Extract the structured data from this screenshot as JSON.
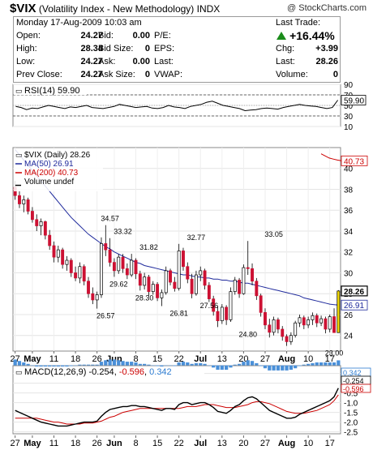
{
  "header": {
    "symbol": "$VIX",
    "name": "(Volatility Index - New Methodology)",
    "exchange": "INDX",
    "credit": "@ StockCharts.com"
  },
  "quote": {
    "date_line": "Monday  17-Aug-2009 10:03 am",
    "open_label": "Open:",
    "open": "24.27",
    "high_label": "High:",
    "high": "28.34",
    "low_label": "Low:",
    "low": "24.27",
    "prev_close_label": "Prev Close:",
    "prev_close": "24.27",
    "bid_label": "Bid:",
    "bid": "0.00",
    "bid_size_label": "Bid Size:",
    "bid_size": "0",
    "ask_label": "Ask:",
    "ask": "0.00",
    "ask_size_label": "Ask Size:",
    "ask_size": "0",
    "pe_label": "P/E:",
    "eps_label": "EPS:",
    "last_label_mid": "Last:",
    "vwap_label": "VWAP:",
    "last_trade_label": "Last Trade:",
    "change_pct": "+16.44%",
    "chg_label": "Chg:",
    "chg": "+3.99",
    "last_label": "Last:",
    "last": "28.26",
    "volume_label": "Volume:",
    "volume": "0",
    "up_color": "#1a8c1a"
  },
  "chart_data": [
    {
      "type": "line",
      "panel": "rsi",
      "title": "RSI(14) 59.90",
      "ylim": [
        10,
        90
      ],
      "y_ticks": [
        90,
        70,
        50,
        30,
        10
      ],
      "y_tick_labels": [
        "90",
        "70",
        "50",
        "30",
        "10"
      ],
      "overbought": 70,
      "oversold": 30,
      "last_value_label": "59.90",
      "values": [
        48,
        46,
        42,
        45,
        44,
        47,
        50,
        48,
        46,
        44,
        47,
        46,
        48,
        50,
        46,
        45,
        44,
        46,
        48,
        52,
        50,
        48,
        46,
        47,
        48,
        45,
        44,
        46,
        50,
        47,
        46,
        44,
        48,
        50,
        52,
        56,
        58,
        54,
        50,
        48,
        46,
        44,
        40,
        41,
        42,
        44,
        45,
        44,
        43,
        46,
        48,
        50,
        52,
        50,
        49,
        48,
        46,
        44,
        46,
        60
      ]
    },
    {
      "type": "candlestick",
      "panel": "price",
      "legend": [
        {
          "label": "$VIX (Daily) 28.26",
          "color": "#000000"
        },
        {
          "label": "MA(50) 26.91",
          "color": "#1f2a9c"
        },
        {
          "label": "MA(200) 40.73",
          "color": "#cc0000"
        },
        {
          "label": "Volume undef",
          "color": "#000000"
        }
      ],
      "ylim": [
        22.5,
        42
      ],
      "y_ticks": [
        40,
        38,
        36,
        34,
        32,
        30,
        28,
        26,
        24
      ],
      "y_tick_labels": [
        "40",
        "38",
        "36",
        "34",
        "32",
        "30",
        "28",
        "26",
        "24"
      ],
      "x_tick_labels": [
        "27",
        "May",
        "11",
        "18",
        "26",
        "Jun",
        "8",
        "15",
        "22",
        "Jul",
        "13",
        "20",
        "27",
        "Aug",
        "10",
        "17"
      ],
      "x_tick_index": [
        0,
        4,
        9,
        14,
        19,
        23,
        28,
        33,
        38,
        43,
        48,
        53,
        58,
        63,
        68,
        73
      ],
      "annotations": [
        {
          "label": "34.57",
          "i": 22,
          "v": 34.57,
          "pos": "above"
        },
        {
          "label": "33.32",
          "i": 25,
          "v": 33.32,
          "pos": "above"
        },
        {
          "label": "31.82",
          "i": 31,
          "v": 31.82,
          "pos": "above"
        },
        {
          "label": "32.77",
          "i": 42,
          "v": 32.77,
          "pos": "above"
        },
        {
          "label": "33.05",
          "i": 60,
          "v": 33.05,
          "pos": "above"
        },
        {
          "label": "29.62",
          "i": 24,
          "v": 29.62,
          "pos": "below"
        },
        {
          "label": "28.30",
          "i": 30,
          "v": 28.3,
          "pos": "below"
        },
        {
          "label": "27.56",
          "i": 45,
          "v": 27.56,
          "pos": "below"
        },
        {
          "label": "26.57",
          "i": 21,
          "v": 26.57,
          "pos": "below"
        },
        {
          "label": "26.81",
          "i": 38,
          "v": 26.81,
          "pos": "below"
        },
        {
          "label": "24.80",
          "i": 54,
          "v": 24.8,
          "pos": "below"
        },
        {
          "label": "23.00",
          "i": 74,
          "v": 23.0,
          "pos": "below"
        }
      ],
      "price_tags": [
        {
          "label": "40.73",
          "v": 40.73,
          "color": "#cc0000"
        },
        {
          "label": "28.26",
          "v": 28.26,
          "color": "#000000"
        },
        {
          "label": "26.91",
          "v": 26.91,
          "color": "#1f2a9c"
        }
      ],
      "ohlc": [
        [
          38.2,
          38.8,
          37.0,
          37.4
        ],
        [
          37.4,
          37.8,
          36.2,
          36.6
        ],
        [
          36.6,
          37.4,
          35.8,
          37.0
        ],
        [
          37.0,
          37.2,
          35.6,
          35.9
        ],
        [
          35.9,
          36.3,
          34.8,
          35.1
        ],
        [
          35.1,
          35.6,
          34.0,
          34.5
        ],
        [
          34.5,
          35.2,
          33.6,
          34.9
        ],
        [
          34.9,
          35.0,
          33.2,
          33.6
        ],
        [
          33.6,
          34.1,
          32.2,
          32.6
        ],
        [
          32.6,
          33.0,
          31.0,
          31.5
        ],
        [
          31.5,
          32.6,
          31.0,
          32.2
        ],
        [
          32.2,
          32.4,
          30.4,
          30.8
        ],
        [
          30.8,
          31.6,
          30.2,
          31.2
        ],
        [
          31.2,
          31.4,
          29.6,
          30.0
        ],
        [
          30.0,
          30.6,
          29.2,
          29.5
        ],
        [
          29.5,
          31.0,
          29.0,
          30.6
        ],
        [
          30.6,
          30.8,
          28.8,
          29.2
        ],
        [
          29.2,
          29.6,
          27.6,
          28.0
        ],
        [
          28.0,
          28.6,
          27.0,
          27.4
        ],
        [
          27.4,
          28.2,
          26.57,
          27.9
        ],
        [
          27.9,
          33.4,
          27.6,
          32.8
        ],
        [
          32.8,
          34.57,
          31.6,
          32.2
        ],
        [
          32.2,
          33.32,
          30.6,
          31.0
        ],
        [
          31.0,
          31.4,
          29.62,
          30.2
        ],
        [
          30.2,
          31.8,
          29.9,
          31.5
        ],
        [
          31.5,
          31.8,
          30.0,
          30.4
        ],
        [
          30.4,
          30.9,
          29.4,
          29.8
        ],
        [
          29.8,
          31.82,
          29.6,
          31.2
        ],
        [
          31.2,
          31.4,
          29.4,
          29.9
        ],
        [
          29.9,
          30.2,
          28.3,
          28.8
        ],
        [
          28.8,
          30.0,
          28.4,
          29.6
        ],
        [
          29.6,
          29.8,
          27.8,
          28.2
        ],
        [
          28.2,
          29.2,
          27.9,
          28.9
        ],
        [
          28.9,
          29.1,
          27.3,
          27.6
        ],
        [
          27.6,
          28.4,
          26.81,
          28.1
        ],
        [
          28.1,
          30.6,
          27.9,
          30.2
        ],
        [
          30.2,
          30.4,
          28.8,
          29.1
        ],
        [
          29.1,
          29.6,
          28.2,
          28.5
        ],
        [
          28.5,
          32.77,
          28.3,
          32.1
        ],
        [
          32.1,
          32.4,
          30.2,
          30.6
        ],
        [
          30.6,
          31.0,
          29.0,
          29.4
        ],
        [
          29.4,
          29.9,
          27.56,
          28.0
        ],
        [
          28.0,
          30.2,
          27.8,
          29.8
        ],
        [
          29.8,
          30.6,
          29.2,
          30.2
        ],
        [
          30.2,
          30.4,
          28.4,
          28.8
        ],
        [
          28.8,
          29.1,
          27.2,
          27.5
        ],
        [
          27.5,
          27.8,
          25.9,
          26.3
        ],
        [
          26.3,
          26.8,
          24.8,
          25.4
        ],
        [
          25.4,
          27.0,
          25.1,
          26.7
        ],
        [
          26.7,
          26.9,
          25.0,
          25.5
        ],
        [
          25.5,
          28.6,
          25.3,
          28.2
        ],
        [
          28.2,
          29.6,
          27.9,
          29.3
        ],
        [
          29.3,
          29.5,
          27.6,
          28.0
        ],
        [
          28.0,
          30.8,
          27.9,
          30.5
        ],
        [
          30.5,
          33.05,
          29.8,
          30.4
        ],
        [
          30.4,
          30.9,
          28.8,
          29.2
        ],
        [
          29.2,
          29.5,
          27.4,
          27.8
        ],
        [
          27.8,
          28.0,
          25.8,
          26.2
        ],
        [
          26.2,
          26.6,
          24.6,
          25.0
        ],
        [
          25.0,
          25.6,
          23.8,
          24.3
        ],
        [
          24.3,
          25.8,
          24.0,
          25.5
        ],
        [
          25.5,
          25.7,
          24.2,
          24.6
        ],
        [
          24.6,
          24.9,
          23.5,
          23.9
        ],
        [
          23.9,
          24.1,
          23.0,
          23.4
        ],
        [
          23.4,
          24.3,
          23.1,
          24.0
        ],
        [
          24.0,
          25.4,
          23.8,
          25.2
        ],
        [
          25.2,
          26.0,
          24.8,
          25.7
        ],
        [
          25.7,
          25.9,
          24.6,
          25.0
        ],
        [
          25.0,
          25.8,
          24.7,
          25.5
        ],
        [
          25.5,
          26.2,
          25.0,
          25.9
        ],
        [
          25.9,
          26.1,
          24.8,
          25.2
        ],
        [
          25.2,
          25.9,
          24.9,
          25.6
        ],
        [
          25.6,
          25.8,
          24.2,
          24.6
        ],
        [
          24.6,
          26.0,
          24.3,
          25.8
        ],
        [
          25.8,
          26.6,
          24.27,
          24.27
        ],
        [
          24.27,
          28.34,
          24.27,
          28.26
        ]
      ],
      "ma50": [
        41.8,
        41.3,
        40.8,
        40.3,
        39.8,
        39.3,
        38.8,
        38.3,
        37.8,
        37.3,
        36.8,
        36.3,
        35.8,
        35.3,
        34.9,
        34.5,
        34.1,
        33.7,
        33.4,
        33.1,
        32.8,
        32.5,
        32.3,
        32.0,
        31.8,
        31.6,
        31.4,
        31.2,
        31.0,
        30.9,
        30.7,
        30.6,
        30.5,
        30.4,
        30.3,
        30.2,
        30.1,
        30.0,
        29.9,
        29.8,
        29.8,
        29.7,
        29.6,
        29.6,
        29.5,
        29.5,
        29.4,
        29.4,
        29.3,
        29.3,
        29.2,
        29.2,
        29.1,
        29.0,
        29.0,
        28.9,
        28.8,
        28.7,
        28.6,
        28.5,
        28.4,
        28.3,
        28.2,
        28.1,
        28.0,
        27.9,
        27.8,
        27.6,
        27.5,
        27.4,
        27.3,
        27.2,
        27.1,
        27.0,
        26.95,
        26.91
      ],
      "ma200_tail": [
        41.4,
        41.2,
        41.0,
        40.9,
        40.8,
        40.73
      ]
    },
    {
      "type": "line",
      "panel": "macd",
      "title": "MACD(12,26,9) -0.254, -0.596, 0.342",
      "title_parts": [
        {
          "text": "MACD(12,26,9) ",
          "color": "#000000"
        },
        {
          "text": "-0.254",
          "color": "#000000"
        },
        {
          "text": ", ",
          "color": "#000000"
        },
        {
          "text": "-0.596",
          "color": "#cc0000"
        },
        {
          "text": ", ",
          "color": "#000000"
        },
        {
          "text": "0.342",
          "color": "#2c7bd0"
        }
      ],
      "ylim": [
        -2.6,
        0.9
      ],
      "y_ticks": [
        0.5,
        0.0,
        -0.5,
        -1.0,
        -1.5,
        -2.0,
        -2.5
      ],
      "y_tick_labels": [
        "0.5",
        "0.0",
        "-0.5",
        "-1.0",
        "-1.5",
        "-2.0",
        "-2.5"
      ],
      "x_tick_labels": [
        "27",
        "May",
        "11",
        "18",
        "26",
        "Jun",
        "8",
        "15",
        "22",
        "Jul",
        "13",
        "20",
        "27",
        "Aug",
        "10",
        "17"
      ],
      "tags": [
        {
          "label": "0.342",
          "v": 0.342,
          "color": "#2c7bd0"
        },
        {
          "label": "-0.254",
          "v": -0.254,
          "color": "#000000"
        },
        {
          "label": "-0.596",
          "v": -0.596,
          "color": "#cc0000"
        }
      ],
      "macd": [
        -1.4,
        -1.5,
        -1.6,
        -1.7,
        -1.8,
        -1.9,
        -2.0,
        -2.05,
        -2.1,
        -2.15,
        -2.2,
        -2.2,
        -2.2,
        -2.15,
        -2.1,
        -2.05,
        -2.0,
        -2.0,
        -2.0,
        -1.95,
        -1.7,
        -1.5,
        -1.35,
        -1.3,
        -1.25,
        -1.2,
        -1.2,
        -1.15,
        -1.15,
        -1.2,
        -1.2,
        -1.25,
        -1.3,
        -1.35,
        -1.4,
        -1.3,
        -1.3,
        -1.35,
        -1.1,
        -1.0,
        -1.0,
        -1.1,
        -1.05,
        -1.0,
        -1.0,
        -1.1,
        -1.25,
        -1.45,
        -1.5,
        -1.55,
        -1.4,
        -1.2,
        -1.1,
        -0.9,
        -0.75,
        -0.7,
        -0.8,
        -1.0,
        -1.2,
        -1.4,
        -1.5,
        -1.6,
        -1.7,
        -1.8,
        -1.8,
        -1.75,
        -1.6,
        -1.5,
        -1.4,
        -1.3,
        -1.2,
        -1.1,
        -1.0,
        -0.9,
        -0.7,
        -0.254
      ],
      "signal": [
        -1.8,
        -1.8,
        -1.8,
        -1.8,
        -1.8,
        -1.8,
        -1.85,
        -1.9,
        -1.95,
        -2.0,
        -2.0,
        -2.05,
        -2.1,
        -2.1,
        -2.1,
        -2.1,
        -2.05,
        -2.05,
        -2.05,
        -2.0,
        -1.95,
        -1.85,
        -1.75,
        -1.7,
        -1.6,
        -1.5,
        -1.45,
        -1.4,
        -1.35,
        -1.3,
        -1.3,
        -1.3,
        -1.3,
        -1.3,
        -1.3,
        -1.3,
        -1.3,
        -1.3,
        -1.3,
        -1.25,
        -1.2,
        -1.2,
        -1.2,
        -1.15,
        -1.1,
        -1.1,
        -1.1,
        -1.15,
        -1.2,
        -1.25,
        -1.25,
        -1.25,
        -1.2,
        -1.15,
        -1.1,
        -1.0,
        -0.95,
        -0.95,
        -1.0,
        -1.05,
        -1.15,
        -1.25,
        -1.35,
        -1.45,
        -1.5,
        -1.55,
        -1.55,
        -1.55,
        -1.5,
        -1.45,
        -1.4,
        -1.3,
        -1.2,
        -1.1,
        -0.9,
        -0.596
      ],
      "hist_source": "difference"
    }
  ]
}
